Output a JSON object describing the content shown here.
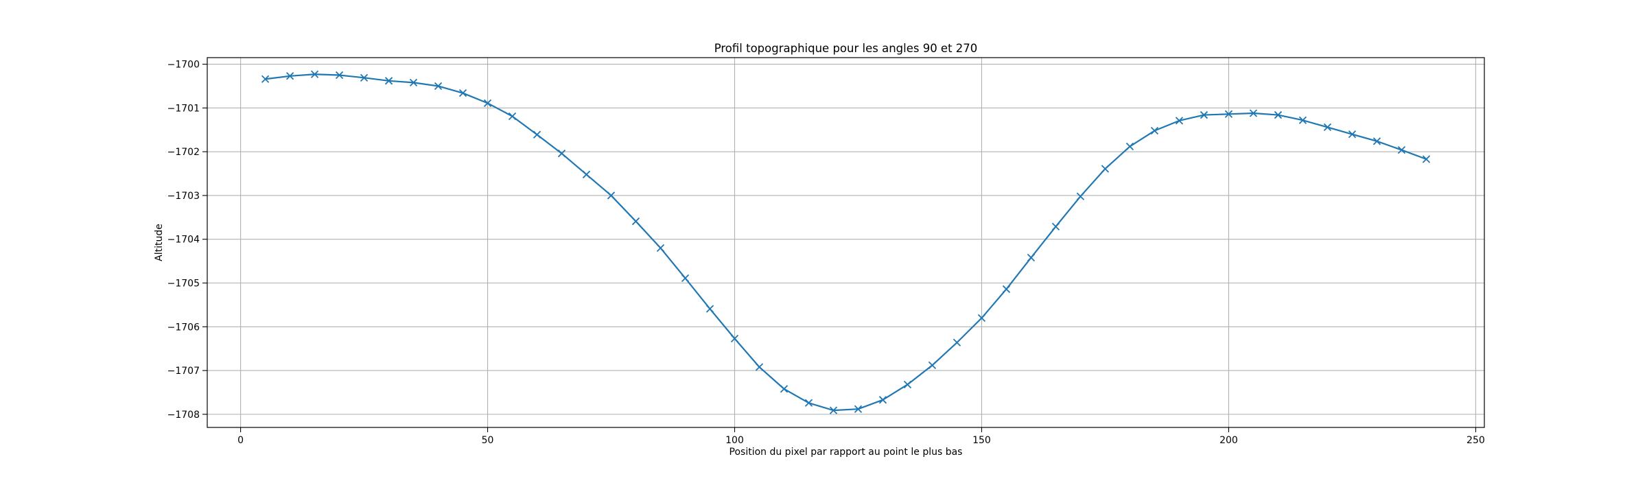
{
  "chart_data": {
    "type": "line",
    "title": "Profil topographique pour les angles 90 et 270",
    "xlabel": "Position du pixel par rapport au point le plus bas",
    "ylabel": "Altitude",
    "xlim": [
      -6.75,
      251.75
    ],
    "ylim": [
      -1708.3,
      -1699.85
    ],
    "x_ticks": [
      0,
      50,
      100,
      150,
      200,
      250
    ],
    "y_ticks": [
      -1708,
      -1707,
      -1706,
      -1705,
      -1704,
      -1703,
      -1702,
      -1701,
      -1700
    ],
    "x_tick_labels": [
      "0",
      "50",
      "100",
      "150",
      "200",
      "250"
    ],
    "y_tick_labels": [
      "−1708",
      "−1707",
      "−1706",
      "−1705",
      "−1704",
      "−1703",
      "−1702",
      "−1701",
      "−1700"
    ],
    "grid": true,
    "marker": "x",
    "line_color": "#1f77b4",
    "series": [
      {
        "x": [
          5,
          10,
          15,
          20,
          25,
          30,
          35,
          40,
          45,
          50,
          55,
          60,
          65,
          70,
          75,
          80,
          85,
          90,
          95,
          100,
          105,
          110,
          115,
          120,
          125,
          130,
          135,
          140,
          145,
          150,
          155,
          160,
          165,
          170,
          175,
          180,
          185,
          190,
          195,
          200,
          205,
          210,
          215,
          220,
          225,
          230,
          235,
          240
        ],
        "values": [
          -1700.34,
          -1700.27,
          -1700.23,
          -1700.25,
          -1700.31,
          -1700.38,
          -1700.42,
          -1700.5,
          -1700.66,
          -1700.89,
          -1701.19,
          -1701.61,
          -1702.04,
          -1702.52,
          -1703.0,
          -1703.59,
          -1704.2,
          -1704.89,
          -1705.59,
          -1706.27,
          -1706.92,
          -1707.42,
          -1707.74,
          -1707.91,
          -1707.88,
          -1707.67,
          -1707.32,
          -1706.88,
          -1706.36,
          -1705.8,
          -1705.14,
          -1704.42,
          -1703.71,
          -1703.02,
          -1702.39,
          -1701.88,
          -1701.52,
          -1701.29,
          -1701.16,
          -1701.14,
          -1701.12,
          -1701.16,
          -1701.28,
          -1701.44,
          -1701.6,
          -1701.76,
          -1701.96,
          -1702.17
        ]
      }
    ]
  }
}
